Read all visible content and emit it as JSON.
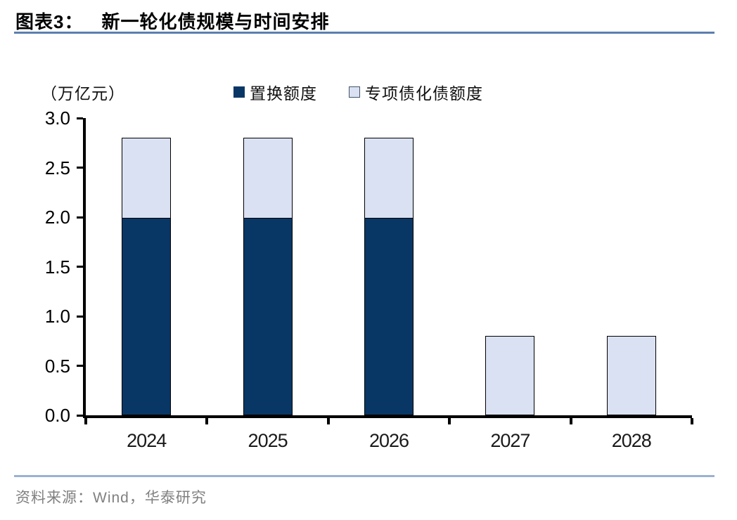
{
  "header": {
    "title_prefix": "图表3：",
    "title_text": "新一轮化债规模与时间安排",
    "rule_color": "#5B7FAF"
  },
  "chart_data": {
    "type": "bar",
    "stacked": true,
    "title": "新一轮化债规模与时间安排",
    "unit_label": "（万亿元）",
    "categories": [
      "2024",
      "2025",
      "2026",
      "2027",
      "2028"
    ],
    "series": [
      {
        "name": "置换额度",
        "color": "#083766",
        "swatch_border": "#083766",
        "values": [
          2.0,
          2.0,
          2.0,
          0,
          0
        ]
      },
      {
        "name": "专项债化债额度",
        "color": "#D9E1F2",
        "swatch_border": "#44546A",
        "values": [
          0.8,
          0.8,
          0.8,
          0.8,
          0.8
        ]
      }
    ],
    "totals": [
      2.8,
      2.8,
      2.8,
      0.8,
      0.8
    ],
    "ylim": [
      0,
      3.0
    ],
    "ytick_labels": [
      "0.0",
      "0.5",
      "1.0",
      "1.5",
      "2.0",
      "2.5",
      "3.0"
    ],
    "bar_border_color": "#000000",
    "axis_color": "#000000",
    "legend_position": "top",
    "grid": false
  },
  "footer": {
    "rule_color": "#9BB2D1",
    "source_text": "资料来源：Wind，华泰研究",
    "source_color": "#808080"
  }
}
